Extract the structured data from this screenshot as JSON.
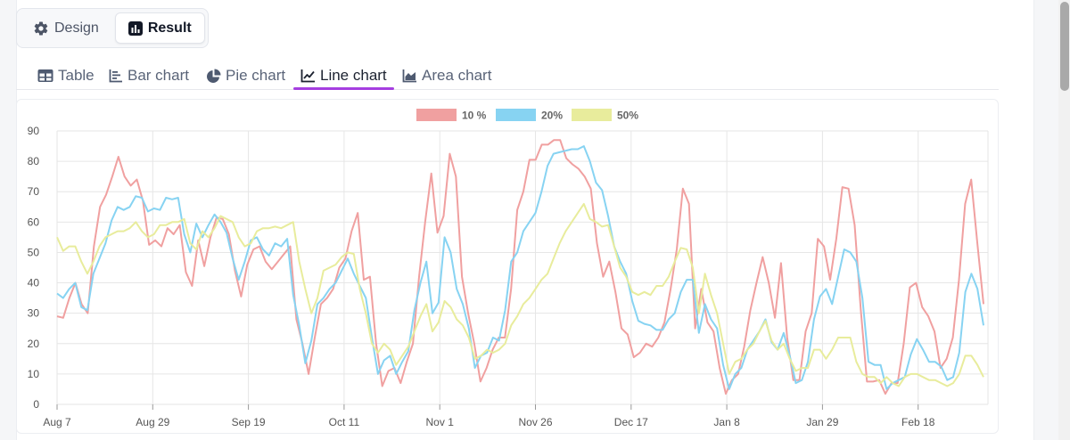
{
  "mode_switch": {
    "design_label": "Design",
    "result_label": "Result",
    "active": "Result"
  },
  "tabs": [
    {
      "label": "Table",
      "icon": "table-icon"
    },
    {
      "label": "Bar chart",
      "icon": "bar-chart-icon"
    },
    {
      "label": "Pie chart",
      "icon": "pie-chart-icon"
    },
    {
      "label": "Line chart",
      "icon": "line-chart-icon",
      "active": true
    },
    {
      "label": "Area chart",
      "icon": "area-chart-icon"
    }
  ],
  "colors": {
    "accent": "#a53ee0",
    "grid": "#e6e6e6"
  },
  "chart_data": {
    "type": "line",
    "xlabel": "",
    "ylabel": "",
    "ylim": [
      0,
      90
    ],
    "yticks": [
      0,
      10,
      20,
      30,
      40,
      50,
      60,
      70,
      80,
      90
    ],
    "xticks": [
      "Aug 7",
      "Aug 29",
      "Sep 19",
      "Oct 11",
      "Nov 1",
      "Nov 26",
      "Dec 17",
      "Jan 8",
      "Jan 29",
      "Feb 18"
    ],
    "grid": true,
    "legend_position": "top-center",
    "series": [
      {
        "name": "10 %",
        "color": "#f0a0a0",
        "values": [
          29,
          28.5,
          35,
          40,
          33,
          30,
          52,
          65,
          69,
          75,
          81.5,
          75,
          72,
          74,
          67,
          52.5,
          54,
          52,
          58,
          56,
          59,
          43.5,
          39,
          54,
          45.5,
          55,
          61.5,
          61,
          56,
          44,
          35.5,
          46,
          51,
          52,
          47,
          44.5,
          47,
          49.5,
          52,
          28,
          20,
          10,
          22,
          33,
          35,
          38,
          45,
          48,
          57,
          63,
          41,
          42,
          20,
          6,
          11,
          12,
          7,
          14,
          20,
          42,
          60,
          76,
          56.5,
          62,
          82.5,
          75,
          42,
          30,
          20,
          7.5,
          12,
          18,
          22,
          22,
          38,
          64,
          70,
          80.5,
          80.5,
          85.5,
          85.5,
          87,
          87,
          81,
          79,
          77.5,
          75,
          71,
          53,
          42,
          47,
          37,
          25,
          23,
          15.5,
          17,
          20,
          19,
          22,
          27,
          38,
          51,
          71,
          66,
          25,
          38,
          27,
          24,
          12,
          3.5,
          8,
          10,
          19,
          31,
          40,
          48.5,
          40,
          28.5,
          46.5,
          22,
          8,
          8,
          24,
          30,
          54.5,
          52,
          41,
          54.5,
          71.5,
          71,
          59,
          31,
          7.5,
          7.5,
          8,
          3.5,
          7,
          7,
          20,
          38.5,
          40,
          32,
          29,
          24,
          12,
          15,
          22,
          41,
          66,
          74,
          53,
          33
        ]
      },
      {
        "name": "20%",
        "color": "#87d3f2",
        "values": [
          36.5,
          35,
          38,
          40,
          32,
          31,
          43,
          48,
          53,
          60.5,
          65,
          64,
          65,
          68.5,
          68,
          63.5,
          64.5,
          64,
          68,
          67.5,
          68,
          56,
          50,
          59.5,
          55,
          59,
          62.5,
          60,
          56.5,
          48,
          41,
          47,
          54,
          55,
          51,
          49,
          53,
          52,
          54.5,
          36,
          26,
          13.5,
          21,
          33,
          35,
          38,
          40,
          44,
          48,
          43,
          39,
          35,
          22,
          10,
          14.5,
          16,
          10,
          14,
          17.5,
          31,
          40,
          47,
          30,
          33.5,
          55,
          50,
          38,
          33,
          25,
          12,
          16,
          17,
          22,
          21,
          31,
          47,
          50,
          57,
          60,
          63,
          70,
          78.5,
          82.5,
          83,
          83.5,
          84,
          84,
          85,
          80,
          73,
          70.5,
          62,
          52,
          47,
          43,
          34,
          27.5,
          26.5,
          26,
          24.5,
          24.5,
          28,
          30,
          37,
          41,
          41,
          23.5,
          33,
          28,
          25,
          13,
          5,
          10,
          12,
          18,
          21,
          24,
          28,
          20.5,
          18,
          23.5,
          16,
          7,
          8,
          14,
          28,
          35.5,
          38,
          33,
          42,
          51,
          50,
          47,
          35,
          14,
          13,
          13,
          5,
          7,
          8,
          9,
          16.5,
          21.5,
          18,
          14,
          14,
          12.5,
          8,
          9,
          17,
          37,
          43,
          38,
          26
        ]
      },
      {
        "name": "50%",
        "color": "#e8ec9c",
        "values": [
          55,
          50.5,
          52,
          52,
          47,
          43,
          47,
          52,
          55,
          56,
          57,
          57,
          58,
          60,
          57,
          55,
          56,
          59,
          59,
          60,
          60,
          61,
          53,
          51,
          57,
          55,
          58,
          62,
          61,
          60,
          55,
          52,
          53,
          57,
          58,
          58,
          58.5,
          58,
          59,
          60,
          47,
          38,
          30,
          35,
          44,
          45,
          46,
          48.5,
          50,
          49.5,
          38,
          30,
          20,
          17,
          20,
          18,
          13,
          16,
          19,
          24,
          29,
          33,
          24,
          27,
          34,
          32,
          28,
          26,
          22,
          15,
          16,
          18,
          17,
          18,
          20,
          26,
          29,
          33,
          35,
          38,
          41,
          43,
          48,
          53,
          57,
          60,
          63,
          66,
          61,
          60,
          58.5,
          59,
          52,
          45,
          42,
          37,
          36,
          37,
          36,
          39,
          39,
          42,
          47,
          51.5,
          51,
          45,
          30,
          43,
          36,
          30,
          20,
          10,
          14,
          15,
          18,
          20,
          24,
          27.5,
          21,
          18,
          20,
          15,
          11,
          12,
          12,
          18,
          18,
          15,
          18,
          22,
          22,
          22,
          14,
          10,
          9,
          9,
          7,
          9,
          7,
          6,
          9,
          10,
          10,
          9,
          8,
          8,
          7,
          6,
          7,
          10,
          16,
          16,
          13,
          9
        ]
      }
    ]
  }
}
